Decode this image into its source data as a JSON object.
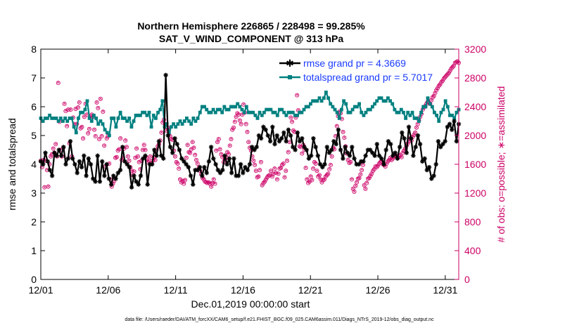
{
  "chart_data": {
    "type": "line",
    "title": "Northern Hemisphere 226865 / 228498 = 99.285%",
    "subtitle": "SAT_V_WIND_COMPONENT @ 313 hPa",
    "xlabel": "Dec.01,2019 00:00:00 start",
    "ylabel_left": "rmse and totalspread",
    "ylabel_right": "# of obs: o=possible; ∗=assimilated",
    "x_tick_labels": [
      "12/01",
      "12/06",
      "12/11",
      "12/16",
      "12/21",
      "12/26",
      "12/31"
    ],
    "x_tick_days": [
      0,
      5,
      10,
      15,
      20,
      25,
      30
    ],
    "xlim": [
      0,
      31
    ],
    "ylim_left": [
      0,
      8
    ],
    "ylim_right": [
      0,
      3200
    ],
    "y_ticks_left": [
      0,
      1,
      2,
      3,
      4,
      5,
      6,
      7,
      8
    ],
    "y_ticks_right": [
      0,
      400,
      800,
      1200,
      1600,
      2000,
      2400,
      2800,
      3200
    ],
    "y_tick_labels_left": [
      "0",
      "1",
      "2",
      "3",
      "4",
      "5",
      "6",
      "7",
      "8"
    ],
    "y_tick_labels_right": [
      "0",
      "400",
      "800",
      "1200",
      "1600",
      "2000",
      "2400",
      "2800",
      "3200"
    ],
    "series": [
      {
        "name": "rmse grand pr = 4.3669",
        "color": "#000000",
        "axis": "left",
        "marker": "star",
        "values": [
          4.1,
          4.0,
          4.4,
          4.1,
          3.8,
          3.6,
          4.4,
          4.3,
          4.5,
          4.3,
          4.6,
          4.0,
          4.2,
          4.8,
          4.2,
          4.0,
          3.7,
          4.1,
          3.9,
          4.3,
          3.6,
          4.2,
          4.0,
          3.5,
          3.4,
          4.3,
          3.4,
          4.1,
          3.6,
          4.0,
          3.5,
          3.3,
          3.6,
          3.5,
          3.7,
          3.8,
          4.6,
          4.1,
          4.0,
          3.9,
          3.2,
          3.6,
          3.4,
          3.3,
          3.6,
          4.2,
          4.3,
          3.3,
          4.0,
          4.0,
          4.5,
          4.3,
          4.8,
          4.3,
          4.2,
          7.1,
          5.0,
          4.6,
          4.4,
          4.9,
          4.7,
          4.5,
          4.2,
          4.1,
          4.0,
          3.9,
          3.6,
          3.3,
          3.8,
          3.8,
          3.9,
          3.6,
          3.9,
          3.7,
          4.1,
          4.6,
          4.2,
          4.0,
          3.8,
          3.7,
          3.8,
          4.3,
          4.0,
          4.2,
          3.7,
          4.2,
          3.6,
          3.6,
          4.0,
          3.7,
          3.9,
          3.8,
          4.0,
          4.6,
          4.5,
          4.6,
          5.0,
          4.9,
          5.3,
          5.2,
          5.0,
          4.8,
          5.3,
          4.7,
          5.0,
          4.8,
          4.9,
          5.1,
          4.8,
          5.2,
          5.0,
          4.6,
          4.5,
          5.1,
          4.8,
          4.9,
          4.6,
          4.5,
          4.2,
          4.3,
          4.9,
          4.6,
          4.3,
          4.0,
          3.9,
          4.0,
          4.6,
          4.4,
          4.5,
          4.8,
          4.7,
          5.2,
          4.5,
          4.2,
          4.6,
          4.4,
          4.3,
          4.6,
          4.2,
          4.0,
          4.0,
          4.1,
          4.1,
          4.3,
          4.5,
          4.5,
          4.4,
          4.3,
          4.7,
          4.3,
          4.2,
          4.0,
          4.5,
          4.8,
          4.7,
          4.3,
          4.4,
          4.2,
          4.6,
          5.1,
          4.9,
          4.4,
          5.3,
          4.9,
          4.3,
          4.6,
          5.0,
          4.7,
          4.1,
          4.2,
          3.8,
          3.9,
          3.5,
          3.6,
          4.0,
          4.8,
          4.6,
          4.7,
          4.8,
          5.3,
          5.4,
          5.2,
          5.5,
          4.8,
          5.4
        ]
      },
      {
        "name": "totalspread grand pr = 5.7017",
        "color": "#008080",
        "axis": "left",
        "marker": "square",
        "values": [
          5.6,
          5.5,
          5.6,
          5.6,
          5.7,
          5.6,
          5.6,
          5.6,
          5.5,
          5.6,
          5.5,
          5.6,
          5.5,
          5.6,
          5.6,
          5.3,
          5.1,
          5.6,
          5.8,
          5.8,
          5.9,
          6.2,
          5.6,
          5.5,
          5.7,
          5.6,
          5.4,
          5.5,
          5.4,
          5.2,
          5.1,
          5.0,
          5.6,
          5.6,
          5.3,
          5.6,
          5.8,
          5.6,
          5.6,
          5.5,
          5.6,
          5.3,
          5.5,
          5.7,
          5.7,
          5.7,
          5.8,
          5.8,
          5.7,
          5.8,
          5.3,
          5.7,
          5.6,
          5.8,
          5.9,
          6.2,
          5.3,
          5.4,
          5.1,
          5.3,
          5.4,
          5.3,
          5.4,
          5.5,
          5.4,
          5.5,
          5.6,
          5.5,
          5.4,
          5.6,
          5.5,
          5.6,
          5.8,
          6.0,
          6.0,
          5.9,
          5.8,
          5.8,
          5.9,
          5.8,
          5.9,
          5.9,
          5.8,
          6.0,
          5.9,
          5.9,
          6.0,
          6.0,
          6.0,
          6.1,
          6.0,
          5.9,
          5.8,
          6.0,
          5.8,
          5.8,
          5.8,
          5.7,
          5.6,
          5.8,
          5.7,
          5.8,
          5.9,
          5.9,
          5.9,
          5.8,
          5.8,
          5.7,
          5.9,
          5.9,
          5.8,
          5.7,
          5.8,
          5.8,
          5.8,
          5.7,
          5.7,
          5.8,
          5.8,
          5.9,
          6.0,
          6.0,
          6.1,
          6.2,
          6.2,
          6.2,
          6.3,
          6.2,
          6.3,
          6.5,
          6.3,
          6.1,
          6.0,
          5.9,
          5.8,
          5.6,
          5.9,
          6.2,
          6.1,
          5.8,
          5.8,
          5.9,
          6.0,
          6.0,
          6.1,
          5.8,
          5.7,
          5.8,
          5.9,
          5.9,
          6.0,
          6.1,
          6.2,
          6.3,
          6.3,
          6.2,
          6.2,
          6.3,
          6.2,
          6.1,
          5.9,
          5.8,
          5.8,
          5.9,
          5.8,
          5.6,
          5.8,
          5.7,
          5.8,
          5.6,
          5.6,
          5.5,
          5.8,
          6.0,
          6.0,
          6.3,
          6.1,
          6.0,
          5.8,
          5.7,
          5.5,
          5.8,
          5.9,
          6.2,
          6.0,
          5.7,
          5.7,
          5.6,
          5.8,
          5.9
        ]
      }
    ],
    "obs_assimilated": [
      1640,
      1550,
      1650,
      1270,
      1640,
      1510,
      1280,
      1590,
      1700,
      1730,
      1810,
      1750,
      1870,
      1700,
      2720,
      2180,
      1790,
      1700,
      1820,
      2430,
      2330,
      2120,
      2350,
      1880,
      2350,
      1700,
      2240,
      2150,
      2360,
      2150,
      2380,
      2450,
      2090,
      2110,
      1950,
      2250,
      2430,
      2280,
      2020,
      2080,
      2250,
      2280,
      2250,
      2070,
      1980,
      2450,
      2370,
      1940,
      2500,
      1980,
      2320,
      1850,
      1560,
      1950,
      1980,
      1600,
      1380,
      1280,
      1320,
      1360,
      1680,
      1690,
      1780,
      1800,
      1950,
      1650,
      1680,
      1810,
      1920,
      1830,
      1700,
      1640,
      1550,
      1500,
      1440,
      1490,
      1680,
      1810,
      1700,
      1620,
      1520,
      1640,
      1790,
      1860,
      1790,
      1680,
      1620,
      1640,
      1700,
      1600,
      1640,
      1690,
      1650,
      1790,
      1840,
      1870,
      1920,
      2030,
      2170,
      2210,
      2150,
      2060,
      2100,
      2070,
      1980,
      1940,
      1930,
      1780,
      1700,
      1620,
      1600,
      1530,
      1380,
      1340,
      1360,
      1320,
      1370,
      1680,
      1860,
      1760,
      1750,
      1800,
      1900,
      1820,
      1720,
      1650,
      1600,
      1540,
      1500,
      1450,
      1400,
      1380,
      1350,
      1340,
      1330,
      1340,
      1320,
      1280,
      1330,
      1380,
      1320,
      1780,
      1900,
      1940,
      1800,
      1730,
      1690,
      1620,
      1660,
      1680,
      1760,
      1730,
      1850,
      1940,
      2070,
      2100,
      2180,
      2250,
      2300,
      2280,
      2200,
      2150,
      2280,
      2420,
      2310,
      2150,
      2040,
      1900,
      1820,
      1780,
      1700,
      1640,
      1580,
      1500,
      1410,
      1420,
      1510,
      1620,
      1300,
      1330,
      1350,
      1380,
      1410,
      1430,
      1440,
      1500,
      1420,
      1460,
      1530,
      1470,
      1380,
      1460,
      1530,
      1540,
      1580,
      1600,
      1410,
      1500,
      1640,
      1760,
      1900,
      2240,
      2180,
      2060,
      2040,
      2240,
      2550,
      2340,
      1840,
      1830,
      1740,
      1860,
      1790,
      1540,
      1380,
      1330,
      1350,
      1420,
      1370,
      1530,
      1620,
      1600,
      1500,
      1420,
      1440,
      1380,
      1340,
      1370,
      1380,
      1420,
      1440,
      1460,
      1520,
      1580,
      1700,
      1820,
      1800,
      1980,
      2120,
      2260,
      2320,
      2300,
      2220,
      2040,
      1960,
      1840,
      1740,
      1650,
      1610,
      1620,
      1380,
      1250,
      1210,
      1290,
      1340,
      1390,
      1400,
      1450,
      1510,
      1580,
      1300,
      1250,
      1330,
      1390,
      1400,
      1430,
      1460,
      1500,
      1520,
      1560,
      1550,
      1570,
      1600,
      1620,
      1630,
      1590,
      1580,
      1560,
      1600,
      1630,
      1650,
      1680,
      1650,
      1670,
      1700,
      1720,
      1700,
      1680,
      1700,
      1720,
      1690,
      1750,
      1780,
      1810,
      1850,
      1880,
      1910,
      1950,
      1920,
      1970,
      2000,
      2030,
      2100,
      2150,
      2200,
      2250,
      2290,
      2350,
      2380,
      2400,
      2430,
      2460,
      2450,
      2430,
      2480,
      2520,
      2540,
      2580,
      2620,
      2650,
      2680,
      2700,
      2730,
      2750,
      2780,
      2800,
      2820,
      2840,
      2860,
      2890,
      2920,
      2940,
      2960,
      3000,
      3010,
      3020,
      3000
    ],
    "obs_possible": [
      1650,
      1560,
      1660,
      1280,
      1650,
      1520,
      1290,
      1600,
      1710,
      1740,
      1820,
      1760,
      1880,
      1710,
      2730,
      2190,
      1800,
      1710,
      1830,
      2440,
      2340,
      2130,
      2360,
      1890,
      2360,
      1710,
      2250,
      2160,
      2370,
      2160,
      2390,
      2460,
      2100,
      2120,
      1960,
      2260,
      2440,
      2290,
      2030,
      2090,
      2260,
      2290,
      2260,
      2080,
      1990,
      2460,
      2380,
      1950,
      2510,
      1990,
      2330,
      1860,
      1570,
      1960,
      1990,
      1610,
      1390,
      1290,
      1330,
      1370,
      1690,
      1700,
      1790,
      1810,
      1960,
      1660,
      1690,
      1820,
      1930,
      1840,
      1710,
      1650,
      1560,
      1510,
      1450,
      1500,
      1690,
      1820,
      1710,
      1630,
      1530,
      1650,
      1800,
      1870,
      1800,
      1690,
      1630,
      1650,
      1710,
      1610,
      1650,
      1700,
      1660,
      1800,
      1850,
      1880,
      1930,
      2040,
      2180,
      2220,
      2160,
      2070,
      2110,
      2080,
      1990,
      1950,
      1940,
      1790,
      1710,
      1630,
      1610,
      1540,
      1390,
      1350,
      1370,
      1330,
      1380,
      1690,
      1870,
      1770,
      1760,
      1810,
      1910,
      1830,
      1730,
      1660,
      1610,
      1550,
      1510,
      1460,
      1410,
      1390,
      1360,
      1350,
      1340,
      1350,
      1330,
      1290,
      1340,
      1390,
      1330,
      1790,
      1910,
      1950,
      1810,
      1740,
      1700,
      1630,
      1670,
      1690,
      1770,
      1740,
      1860,
      1950,
      2080,
      2110,
      2190,
      2260,
      2310,
      2290,
      2210,
      2160,
      2290,
      2430,
      2320,
      2160,
      2050,
      1910,
      1830,
      1790,
      1710,
      1650,
      1590,
      1510,
      1420,
      1430,
      1520,
      1630,
      1310,
      1340,
      1360,
      1390,
      1420,
      1440,
      1450,
      1510,
      1430,
      1470,
      1540,
      1480,
      1390,
      1470,
      1540,
      1550,
      1590,
      1610,
      1420,
      1510,
      1650,
      1770,
      1910,
      2250,
      2190,
      2070,
      2050,
      2250,
      2560,
      2350,
      1850,
      1840,
      1750,
      1870,
      1800,
      1550,
      1390,
      1340,
      1360,
      1430,
      1380,
      1540,
      1630,
      1610,
      1510,
      1430,
      1450,
      1390,
      1350,
      1380,
      1390,
      1430,
      1450,
      1470,
      1530,
      1590,
      1710,
      1830,
      1810,
      1990,
      2130,
      2270,
      2330,
      2310,
      2230,
      2050,
      1970,
      1850,
      1750,
      1660,
      1620,
      1630,
      1390,
      1260,
      1220,
      1300,
      1350,
      1400,
      1410,
      1460,
      1520,
      1590,
      1310,
      1260,
      1340,
      1400,
      1410,
      1440,
      1470,
      1510,
      1530,
      1570,
      1560,
      1580,
      1610,
      1630,
      1640,
      1600,
      1590,
      1570,
      1610,
      1640,
      1660,
      1690,
      1660,
      1680,
      1710,
      1730,
      1710,
      1690,
      1710,
      1730,
      1700,
      1760,
      1790,
      1820,
      1860,
      1890,
      1920,
      1960,
      1930,
      1980,
      2010,
      2040,
      2110,
      2160,
      2210,
      2260,
      2300,
      2360,
      2390,
      2410,
      2440,
      2470,
      2460,
      2440,
      2490,
      2530,
      2550,
      2590,
      2630,
      2660,
      2690,
      2710,
      2740,
      2760,
      2790,
      2810,
      2830,
      2850,
      2870,
      2900,
      2930,
      2950,
      2970,
      3010,
      3020,
      3030,
      3010
    ],
    "footer": "data file: /Users/raeder/DAI/ATM_forcXX/CAM6_setup/f.e21.FHIST_BGC.f09_025.CAM6assim.011/Diags_NTrS_2019-12/obs_diag_output.nc"
  }
}
